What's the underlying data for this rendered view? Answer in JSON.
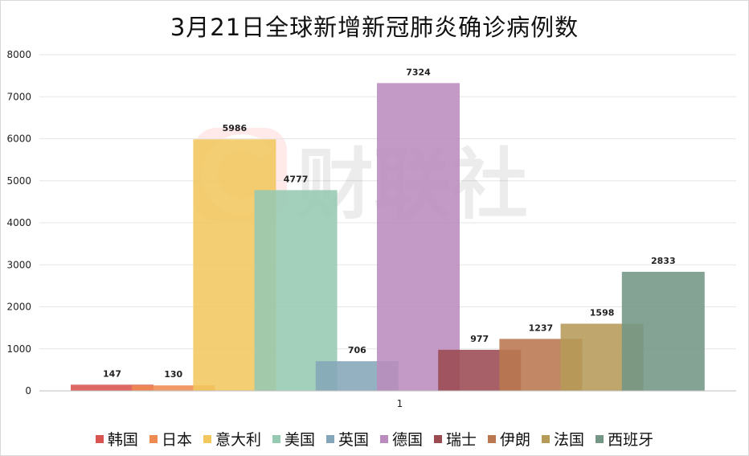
{
  "chart_data": {
    "type": "bar",
    "title": "3月21日全球新增新冠肺炎确诊病例数",
    "categories": [
      "1"
    ],
    "series": [
      {
        "name": "韩国",
        "value": 147,
        "color": "#d9534f"
      },
      {
        "name": "日本",
        "value": 130,
        "color": "#ef8a52"
      },
      {
        "name": "意大利",
        "value": 5986,
        "color": "#f1c75e"
      },
      {
        "name": "美国",
        "value": 4777,
        "color": "#96c9b2"
      },
      {
        "name": "英国",
        "value": 706,
        "color": "#85a6b8"
      },
      {
        "name": "德国",
        "value": 7324,
        "color": "#b98cbd"
      },
      {
        "name": "瑞士",
        "value": 977,
        "color": "#9b4a52"
      },
      {
        "name": "伊朗",
        "value": 1237,
        "color": "#b97850"
      },
      {
        "name": "法国",
        "value": 1598,
        "color": "#b59a58"
      },
      {
        "name": "西班牙",
        "value": 2833,
        "color": "#739685"
      }
    ],
    "yticks": [
      0,
      1000,
      2000,
      3000,
      4000,
      5000,
      6000,
      7000,
      8000
    ],
    "ylim": [
      0,
      8000
    ],
    "grid": true,
    "legend": "bottom"
  },
  "watermark": {
    "text": "财联社"
  }
}
